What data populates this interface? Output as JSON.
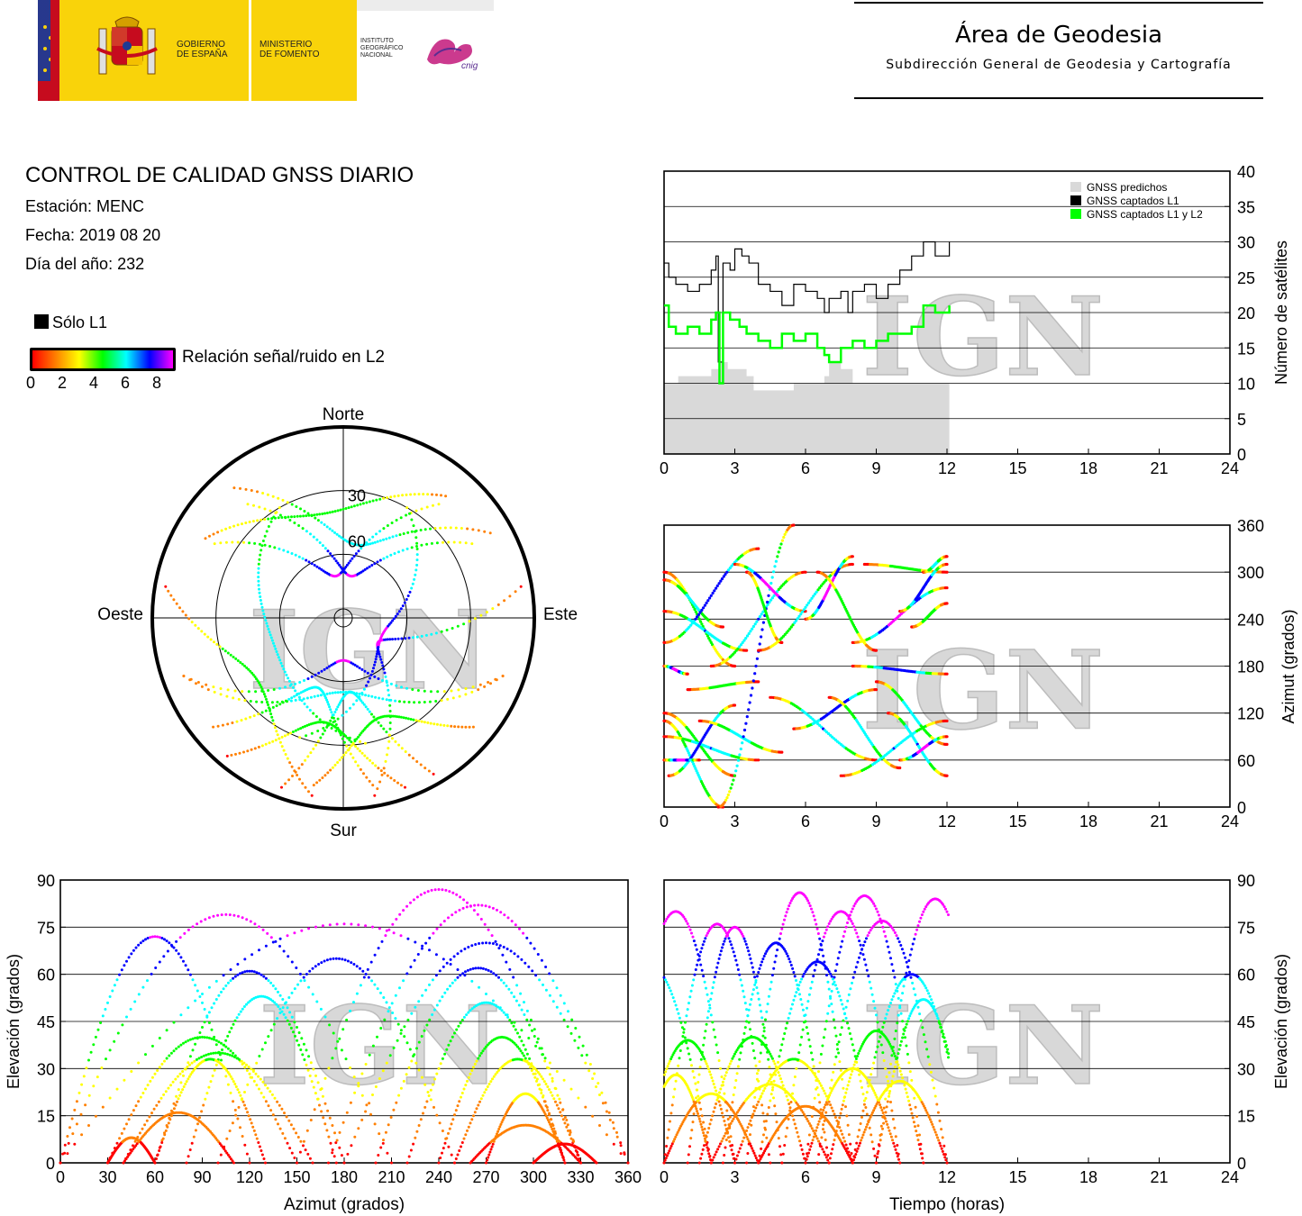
{
  "header": {
    "gov_line1": "GOBIERNO",
    "gov_line2": "DE ESPAÑA",
    "min_line1": "MINISTERIO",
    "min_line2": "DE FOMENTO",
    "ign_line1": "INSTITUTO",
    "ign_line2": "GEOGRÁFICO",
    "ign_line3": "NACIONAL",
    "cnig": "cnig",
    "area_title": "Área de Geodesia",
    "area_subtitle": "Subdirección General de Geodesia y Cartografía"
  },
  "info": {
    "title": "CONTROL DE CALIDAD GNSS DIARIO",
    "station": "Estación: MENC",
    "date": "Fecha: 2019 08 20",
    "doy": "Día del año: 232",
    "l1_only": "Sólo L1",
    "snr_label": "Relación señal/ruido en L2",
    "snr_ticks": [
      "0",
      "2",
      "4",
      "6",
      "8"
    ]
  },
  "watermark": "IGN",
  "colors": {
    "snr_scale": [
      "#ff0000",
      "#ff8000",
      "#ffff00",
      "#00ff00",
      "#00ffff",
      "#0000ff",
      "#ff00ff"
    ],
    "predicted": "#d9d9d9",
    "l1": "#000000",
    "l1l2": "#00ff00"
  },
  "chart_data": [
    {
      "type": "area",
      "id": "satellites",
      "ylabel": "Número de satélites",
      "ylim": [
        0,
        40
      ],
      "xlim": [
        0,
        24
      ],
      "xticks": [
        "0",
        "3",
        "6",
        "9",
        "12",
        "15",
        "18",
        "21",
        "24"
      ],
      "yticks": [
        "0",
        "5",
        "10",
        "15",
        "20",
        "25",
        "30",
        "35",
        "40"
      ],
      "legend_position": "top-right",
      "grid": true,
      "legend": [
        "GNSS predichos",
        "GNSS captados L1",
        "GNSS captados L1 y L2"
      ],
      "series": [
        {
          "name": "GNSS predichos",
          "x": [
            0,
            0.6,
            2.0,
            2.4,
            2.7,
            3.5,
            3.8,
            4.5,
            5.5,
            6.8,
            7.0,
            7.5,
            8.0,
            9.0,
            10.0,
            11.0,
            12.1
          ],
          "values": [
            10,
            11,
            12,
            13,
            12,
            11,
            9,
            9,
            10,
            11,
            13,
            12,
            10,
            10,
            10,
            10,
            10
          ]
        },
        {
          "name": "GNSS captados L1",
          "x": [
            0,
            0.2,
            0.5,
            1.0,
            1.5,
            2.0,
            2.2,
            2.3,
            2.5,
            2.8,
            3.0,
            3.3,
            3.6,
            4.0,
            4.5,
            5.0,
            5.5,
            6.0,
            6.5,
            6.8,
            7.0,
            7.5,
            7.8,
            8.0,
            8.5,
            9.0,
            9.5,
            10.0,
            10.5,
            11.0,
            11.5,
            12.1
          ],
          "values": [
            27,
            25,
            24,
            23,
            24,
            26,
            28,
            13,
            27,
            26,
            29,
            28,
            27,
            24,
            23,
            21,
            24,
            23,
            22,
            20,
            22,
            23,
            20,
            23,
            24,
            22,
            24,
            26,
            28,
            30,
            28,
            30
          ]
        },
        {
          "name": "GNSS captados L1 y L2",
          "x": [
            0,
            0.2,
            0.5,
            1.0,
            1.5,
            2.0,
            2.2,
            2.35,
            2.5,
            2.8,
            3.2,
            3.5,
            4.0,
            4.5,
            5.0,
            5.5,
            6.0,
            6.5,
            6.8,
            7.0,
            7.5,
            8.0,
            8.5,
            9.0,
            9.5,
            10.0,
            10.5,
            11.0,
            11.5,
            12.1
          ],
          "values": [
            21,
            18,
            17,
            18,
            17,
            19,
            20,
            10,
            20,
            19,
            18,
            17,
            16,
            15,
            17,
            16,
            17,
            15,
            14,
            13,
            15,
            16,
            15,
            16,
            17,
            17,
            18,
            21,
            20,
            21
          ]
        }
      ]
    },
    {
      "type": "scatter",
      "id": "azimuth-time",
      "ylabel": "Azimut (grados)",
      "ylim": [
        0,
        360
      ],
      "xlim": [
        0,
        24
      ],
      "xticks": [
        "0",
        "3",
        "6",
        "9",
        "12",
        "15",
        "18",
        "21",
        "24"
      ],
      "yticks": [
        "0",
        "60",
        "120",
        "180",
        "240",
        "300",
        "360"
      ],
      "grid": true
    },
    {
      "type": "scatter",
      "id": "elevation-azimuth",
      "xlabel": "Azimut (grados)",
      "ylabel": "Elevación (grados)",
      "xlim": [
        0,
        360
      ],
      "ylim": [
        0,
        90
      ],
      "xticks": [
        "0",
        "30",
        "60",
        "90",
        "120",
        "150",
        "180",
        "210",
        "240",
        "270",
        "300",
        "330",
        "360"
      ],
      "yticks": [
        "0",
        "15",
        "30",
        "45",
        "60",
        "75",
        "90"
      ],
      "grid": true
    },
    {
      "type": "scatter",
      "id": "elevation-time",
      "xlabel": "Tiempo (horas)",
      "ylabel": "Elevación (grados)",
      "xlim": [
        0,
        24
      ],
      "ylim": [
        0,
        90
      ],
      "xticks": [
        "0",
        "3",
        "6",
        "9",
        "12",
        "15",
        "18",
        "21",
        "24"
      ],
      "yticks": [
        "0",
        "15",
        "30",
        "45",
        "60",
        "75",
        "90"
      ],
      "grid": true
    },
    {
      "type": "scatter",
      "id": "skyplot",
      "labels": {
        "north": "Norte",
        "south": "Sur",
        "east": "Este",
        "west": "Oeste"
      },
      "rings": [
        "30",
        "60"
      ]
    }
  ]
}
